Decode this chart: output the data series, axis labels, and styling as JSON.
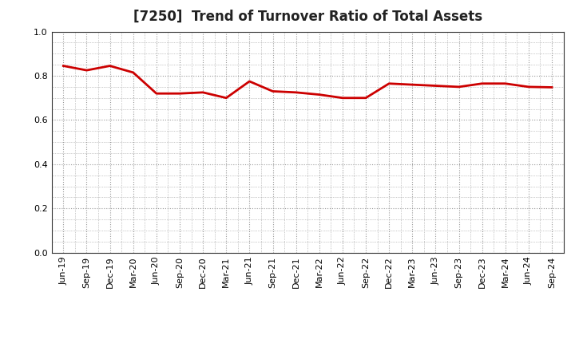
{
  "title": "[7250]  Trend of Turnover Ratio of Total Assets",
  "labels": [
    "Jun-19",
    "Sep-19",
    "Dec-19",
    "Mar-20",
    "Jun-20",
    "Sep-20",
    "Dec-20",
    "Mar-21",
    "Jun-21",
    "Sep-21",
    "Dec-21",
    "Mar-22",
    "Jun-22",
    "Sep-22",
    "Dec-22",
    "Mar-23",
    "Jun-23",
    "Sep-23",
    "Dec-23",
    "Mar-24",
    "Jun-24",
    "Sep-24"
  ],
  "values": [
    0.845,
    0.825,
    0.845,
    0.815,
    0.72,
    0.72,
    0.725,
    0.7,
    0.775,
    0.73,
    0.725,
    0.715,
    0.7,
    0.7,
    0.765,
    0.76,
    0.755,
    0.75,
    0.765,
    0.765,
    0.75,
    0.748
  ],
  "line_color": "#cc0000",
  "line_width": 2.0,
  "ylim": [
    0.0,
    1.0
  ],
  "yticks": [
    0.0,
    0.2,
    0.4,
    0.6,
    0.8,
    1.0
  ],
  "background_color": "#ffffff",
  "grid_color": "#999999",
  "title_fontsize": 12,
  "tick_fontsize": 8,
  "title_color": "#222222"
}
